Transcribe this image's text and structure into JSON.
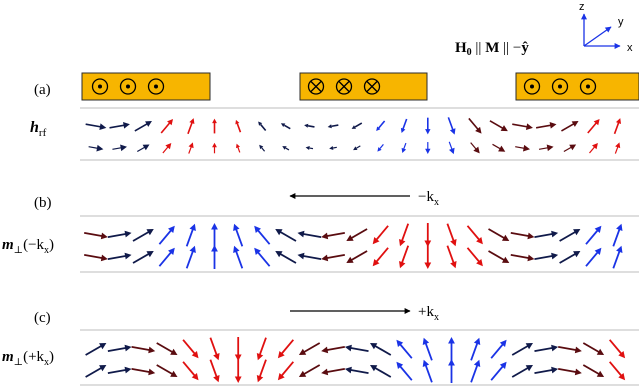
{
  "colors": {
    "blue": "#1a33e6",
    "dark_blue": "#101a4a",
    "dark_red": "#5a0c10",
    "red": "#e01010",
    "magnet_fill": "#f7b500",
    "magnet_stroke": "#2b2b2b",
    "rule": "#bdbdbd"
  },
  "axes": {
    "z": "z",
    "y": "y",
    "x": "x"
  },
  "field_label": {
    "h": "H",
    "h_sub": "0",
    "rel1": " || ",
    "m": "M",
    "rel2": " || −",
    "yhat": "ŷ"
  },
  "panels": {
    "a": {
      "label": "(a)",
      "row_label": "h",
      "row_label_sub": "rf",
      "magnets": [
        {
          "symbol": "dot"
        },
        {
          "symbol": "cross"
        },
        {
          "symbol": "dot"
        }
      ]
    },
    "b": {
      "label": "(b)",
      "row_label": "m",
      "row_label_sub": "⊥",
      "row_label_arg": "(−k",
      "row_label_arg_sub": "x",
      "row_label_close": ")",
      "wave": "−k",
      "wave_sub": "x",
      "wave_direction": "left"
    },
    "c": {
      "label": "(c)",
      "row_label": "m",
      "row_label_sub": "⊥",
      "row_label_arg": "(+k",
      "row_label_arg_sub": "x",
      "row_label_close": ")",
      "wave": "+k",
      "wave_sub": "x",
      "wave_direction": "right"
    }
  }
}
